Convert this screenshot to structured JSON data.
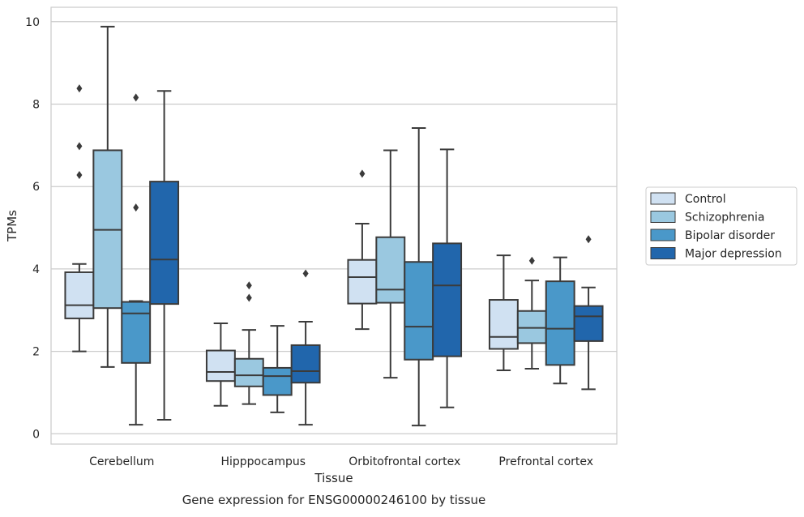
{
  "chart_data": {
    "type": "boxplot",
    "title": "",
    "caption": "Gene expression for ENSG00000246100 by tissue",
    "xlabel": "Tissue",
    "ylabel": "TPMs",
    "ylim": [
      -0.25,
      10.35
    ],
    "yticks": [
      0,
      2,
      4,
      6,
      8,
      10
    ],
    "grid": "horizontal",
    "legend_position": "right",
    "categories": [
      "Cerebellum",
      "Hipppocampus",
      "Orbitofrontal cortex",
      "Prefrontal cortex"
    ],
    "series": [
      {
        "name": "Control",
        "color": "#d0e1f2",
        "boxes": [
          {
            "whislo": 2.0,
            "q1": 2.8,
            "med": 3.12,
            "q3": 3.92,
            "whishi": 4.12,
            "fliers": [
              8.38,
              6.98,
              6.28
            ]
          },
          {
            "whislo": 0.68,
            "q1": 1.28,
            "med": 1.5,
            "q3": 2.02,
            "whishi": 2.68,
            "fliers": []
          },
          {
            "whislo": 2.54,
            "q1": 3.16,
            "med": 3.8,
            "q3": 4.22,
            "whishi": 5.1,
            "fliers": [
              6.31
            ]
          },
          {
            "whislo": 1.54,
            "q1": 2.06,
            "med": 2.35,
            "q3": 3.25,
            "whishi": 4.33,
            "fliers": []
          }
        ]
      },
      {
        "name": "Schizophrenia",
        "color": "#9ac8e0",
        "boxes": [
          {
            "whislo": 1.62,
            "q1": 3.05,
            "med": 4.95,
            "q3": 6.88,
            "whishi": 9.88,
            "fliers": []
          },
          {
            "whislo": 0.72,
            "q1": 1.15,
            "med": 1.42,
            "q3": 1.82,
            "whishi": 2.52,
            "fliers": [
              3.6,
              3.3
            ]
          },
          {
            "whislo": 1.36,
            "q1": 3.18,
            "med": 3.5,
            "q3": 4.77,
            "whishi": 6.88,
            "fliers": []
          },
          {
            "whislo": 1.58,
            "q1": 2.2,
            "med": 2.57,
            "q3": 2.98,
            "whishi": 3.72,
            "fliers": [
              4.2
            ]
          }
        ]
      },
      {
        "name": "Bipolar disorder",
        "color": "#4a98c9",
        "boxes": [
          {
            "whislo": 0.22,
            "q1": 1.72,
            "med": 2.92,
            "q3": 3.2,
            "whishi": 3.22,
            "fliers": [
              8.16,
              5.49
            ]
          },
          {
            "whislo": 0.52,
            "q1": 0.94,
            "med": 1.4,
            "q3": 1.6,
            "whishi": 2.62,
            "fliers": []
          },
          {
            "whislo": 0.2,
            "q1": 1.8,
            "med": 2.6,
            "q3": 4.17,
            "whishi": 7.42,
            "fliers": []
          },
          {
            "whislo": 1.22,
            "q1": 1.67,
            "med": 2.55,
            "q3": 3.7,
            "whishi": 4.28,
            "fliers": []
          }
        ]
      },
      {
        "name": "Major depression",
        "color": "#2166ac",
        "boxes": [
          {
            "whislo": 0.34,
            "q1": 3.15,
            "med": 4.23,
            "q3": 6.12,
            "whishi": 8.32,
            "fliers": []
          },
          {
            "whislo": 0.22,
            "q1": 1.24,
            "med": 1.52,
            "q3": 2.15,
            "whishi": 2.72,
            "fliers": [
              3.89
            ]
          },
          {
            "whislo": 0.64,
            "q1": 1.88,
            "med": 3.6,
            "q3": 4.62,
            "whishi": 6.9,
            "fliers": []
          },
          {
            "whislo": 1.08,
            "q1": 2.25,
            "med": 2.85,
            "q3": 3.1,
            "whishi": 3.55,
            "fliers": [
              4.72
            ]
          }
        ]
      }
    ]
  }
}
